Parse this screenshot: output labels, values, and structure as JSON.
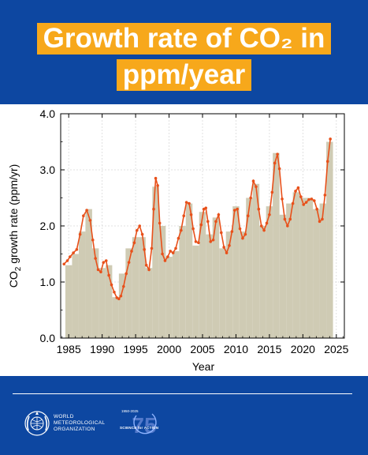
{
  "header": {
    "title_line1": "Growth rate of CO₂ in",
    "title_line2": "ppm/year"
  },
  "colors": {
    "header_bg": "#0d47a1",
    "title_bg": "#f7a81b",
    "bar_fill": "#cfcbb4",
    "line": "#e8501a"
  },
  "chart_data": {
    "type": "bar",
    "xlabel": "Year",
    "ylabel_main": "CO",
    "ylabel_sub": "2",
    "ylabel_rest": " growth rate (ppm/yr)",
    "xlim": [
      1983.8,
      2026.2
    ],
    "ylim": [
      0,
      4
    ],
    "xticks": [
      1985,
      1990,
      1995,
      2000,
      2005,
      2010,
      2015,
      2020,
      2025
    ],
    "yticks": [
      "0.0",
      "1.0",
      "2.0",
      "3.0",
      "4.0"
    ],
    "grid": true,
    "annual_bars": {
      "years": [
        1985,
        1986,
        1987,
        1988,
        1989,
        1990,
        1991,
        1992,
        1993,
        1994,
        1995,
        1996,
        1997,
        1998,
        1999,
        2000,
        2001,
        2002,
        2003,
        2004,
        2005,
        2006,
        2007,
        2008,
        2009,
        2010,
        2011,
        2012,
        2013,
        2014,
        2015,
        2016,
        2017,
        2018,
        2019,
        2020,
        2021,
        2022,
        2023,
        2024
      ],
      "values": [
        1.3,
        1.5,
        1.9,
        2.3,
        1.6,
        1.25,
        1.3,
        0.73,
        1.15,
        1.6,
        1.8,
        1.8,
        1.25,
        2.7,
        2.0,
        1.45,
        1.55,
        2.0,
        2.4,
        1.65,
        2.25,
        1.85,
        2.15,
        1.6,
        1.9,
        2.35,
        1.9,
        2.5,
        2.75,
        2.0,
        2.35,
        3.3,
        2.2,
        2.4,
        2.6,
        2.5,
        2.5,
        2.3,
        2.4,
        3.5
      ]
    },
    "growth_curve": {
      "x": [
        1984.3,
        1984.8,
        1985.2,
        1985.7,
        1986.2,
        1986.7,
        1987.2,
        1987.7,
        1988.2,
        1988.6,
        1989.0,
        1989.4,
        1989.8,
        1990.2,
        1990.6,
        1991.0,
        1991.4,
        1991.8,
        1992.2,
        1992.5,
        1992.8,
        1993.2,
        1993.6,
        1994.0,
        1994.4,
        1994.8,
        1995.2,
        1995.6,
        1996.0,
        1996.3,
        1996.6,
        1997.0,
        1997.4,
        1997.7,
        1998.0,
        1998.3,
        1998.6,
        1999.0,
        1999.4,
        1999.8,
        2000.2,
        2000.6,
        2001.0,
        2001.4,
        2001.8,
        2002.2,
        2002.6,
        2003.0,
        2003.3,
        2003.6,
        2004.0,
        2004.4,
        2004.8,
        2005.2,
        2005.5,
        2005.8,
        2006.2,
        2006.6,
        2007.0,
        2007.4,
        2007.8,
        2008.2,
        2008.6,
        2009.0,
        2009.4,
        2009.8,
        2010.2,
        2010.6,
        2011.0,
        2011.4,
        2011.8,
        2012.2,
        2012.6,
        2013.0,
        2013.4,
        2013.8,
        2014.2,
        2014.6,
        2015.0,
        2015.4,
        2015.8,
        2016.2,
        2016.5,
        2016.9,
        2017.3,
        2017.7,
        2018.1,
        2018.5,
        2018.9,
        2019.3,
        2019.7,
        2020.1,
        2020.5,
        2020.9,
        2021.3,
        2021.7,
        2022.1,
        2022.5,
        2022.9,
        2023.3,
        2023.7,
        2024.1
      ],
      "y": [
        1.32,
        1.38,
        1.45,
        1.52,
        1.58,
        1.85,
        2.18,
        2.28,
        2.1,
        1.75,
        1.42,
        1.22,
        1.18,
        1.35,
        1.38,
        1.12,
        0.95,
        0.82,
        0.72,
        0.7,
        0.75,
        0.92,
        1.15,
        1.35,
        1.55,
        1.7,
        1.92,
        2.0,
        1.85,
        1.58,
        1.3,
        1.22,
        1.6,
        2.3,
        2.85,
        2.72,
        2.05,
        1.5,
        1.38,
        1.45,
        1.55,
        1.52,
        1.6,
        1.78,
        1.92,
        2.18,
        2.42,
        2.4,
        2.2,
        1.95,
        1.72,
        1.7,
        2.02,
        2.3,
        2.32,
        2.08,
        1.72,
        1.75,
        2.08,
        2.2,
        1.88,
        1.62,
        1.52,
        1.65,
        1.9,
        2.28,
        2.3,
        1.95,
        1.78,
        1.85,
        2.18,
        2.5,
        2.8,
        2.7,
        2.3,
        2.0,
        1.92,
        2.05,
        2.2,
        2.6,
        3.12,
        3.28,
        3.02,
        2.48,
        2.12,
        2.0,
        2.12,
        2.4,
        2.62,
        2.68,
        2.52,
        2.38,
        2.42,
        2.47,
        2.48,
        2.45,
        2.3,
        2.08,
        2.12,
        2.55,
        3.15,
        3.55
      ]
    }
  },
  "footer": {
    "org_line1": "WORLD",
    "org_line2": "METEOROLOGICAL",
    "org_line3": "ORGANIZATION",
    "anniv_years": "1950-2025",
    "anniv_number": "75",
    "anniv_tag": "SCIENCE for ACTION"
  }
}
